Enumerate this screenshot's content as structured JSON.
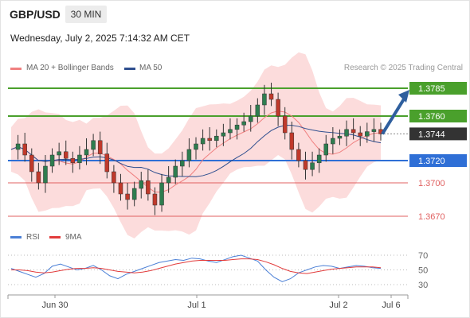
{
  "header": {
    "pair": "GBP/USD",
    "timeframe": "30 MIN",
    "timestamp": "Wednesday, July 2, 2025 7:14:32 AM CET"
  },
  "legend": {
    "ma20_label": "MA 20 + Bollinger Bands",
    "ma50_label": "MA 50",
    "credit": "Research © 2025 Trading Central",
    "rsi_label": "RSI",
    "ma9_label": "9MA"
  },
  "colors": {
    "green_level": "#4aa02c",
    "blue_level": "#2f6fd6",
    "red_level": "#e06060",
    "current_price": "#333333",
    "arrow": "#2f5f9e",
    "bollinger_fill": "#fbd6d6",
    "ma20": "#f08080",
    "ma50": "#2f4f8f",
    "candle_up": "#26a69a",
    "candle_down": "#ef5350"
  },
  "chart_data": [
    {
      "type": "candlestick",
      "title": "GBP/USD 30 MIN",
      "levels": [
        {
          "value": 1.3785,
          "label": "1.3785",
          "kind": "resistance",
          "color": "#4aa02c"
        },
        {
          "value": 1.376,
          "label": "1.3760",
          "kind": "resistance",
          "color": "#4aa02c"
        },
        {
          "value": 1.3744,
          "label": "1.3744",
          "kind": "current",
          "color": "#333333"
        },
        {
          "value": 1.372,
          "label": "1.3720",
          "kind": "pivot",
          "color": "#2f6fd6"
        },
        {
          "value": 1.37,
          "label": "1.3700",
          "kind": "support",
          "color": "#e06060"
        },
        {
          "value": 1.367,
          "label": "1.3670",
          "kind": "support",
          "color": "#e06060"
        }
      ],
      "x_ticks": [
        "Jun 30",
        "Jul 1",
        "Jul 2",
        "Jul 6"
      ],
      "projection": {
        "from": 1.3744,
        "to": 1.3785,
        "direction": "up"
      },
      "price_path": [
        1.373,
        1.3735,
        1.3725,
        1.371,
        1.37,
        1.3715,
        1.3725,
        1.3728,
        1.3722,
        1.3718,
        1.3725,
        1.373,
        1.3738,
        1.3726,
        1.371,
        1.37,
        1.369,
        1.3685,
        1.3695,
        1.3702,
        1.369,
        1.368,
        1.37,
        1.3705,
        1.3715,
        1.372,
        1.373,
        1.3735,
        1.374,
        1.3738,
        1.3742,
        1.3745,
        1.3748,
        1.3752,
        1.3755,
        1.376,
        1.377,
        1.378,
        1.3775,
        1.376,
        1.3745,
        1.373,
        1.372,
        1.3712,
        1.3718,
        1.3725,
        1.3735,
        1.374,
        1.3742,
        1.3748,
        1.3745,
        1.3742,
        1.3746,
        1.3748,
        1.3744
      ]
    },
    {
      "type": "line",
      "title": "RSI",
      "ylim": [
        30,
        70
      ],
      "y_ticks": [
        70,
        50,
        30
      ],
      "series": [
        {
          "name": "RSI",
          "color": "#4a7fd6",
          "values": [
            52,
            48,
            44,
            40,
            45,
            55,
            58,
            54,
            50,
            52,
            56,
            50,
            42,
            38,
            44,
            48,
            52,
            56,
            60,
            62,
            64,
            63,
            66,
            65,
            62,
            60,
            64,
            68,
            70,
            66,
            62,
            50,
            40,
            34,
            38,
            46,
            50,
            54,
            56,
            55,
            52,
            54,
            56,
            55,
            53,
            52
          ]
        },
        {
          "name": "9MA",
          "color": "#e23b3b",
          "values": [
            50,
            50,
            49,
            47,
            46,
            47,
            49,
            51,
            52,
            52,
            53,
            52,
            50,
            48,
            47,
            46,
            47,
            49,
            52,
            55,
            58,
            60,
            62,
            63,
            63,
            63,
            63,
            64,
            65,
            65,
            64,
            61,
            57,
            52,
            48,
            46,
            45,
            47,
            49,
            51,
            52,
            53,
            54,
            54,
            54,
            53
          ]
        }
      ]
    }
  ]
}
